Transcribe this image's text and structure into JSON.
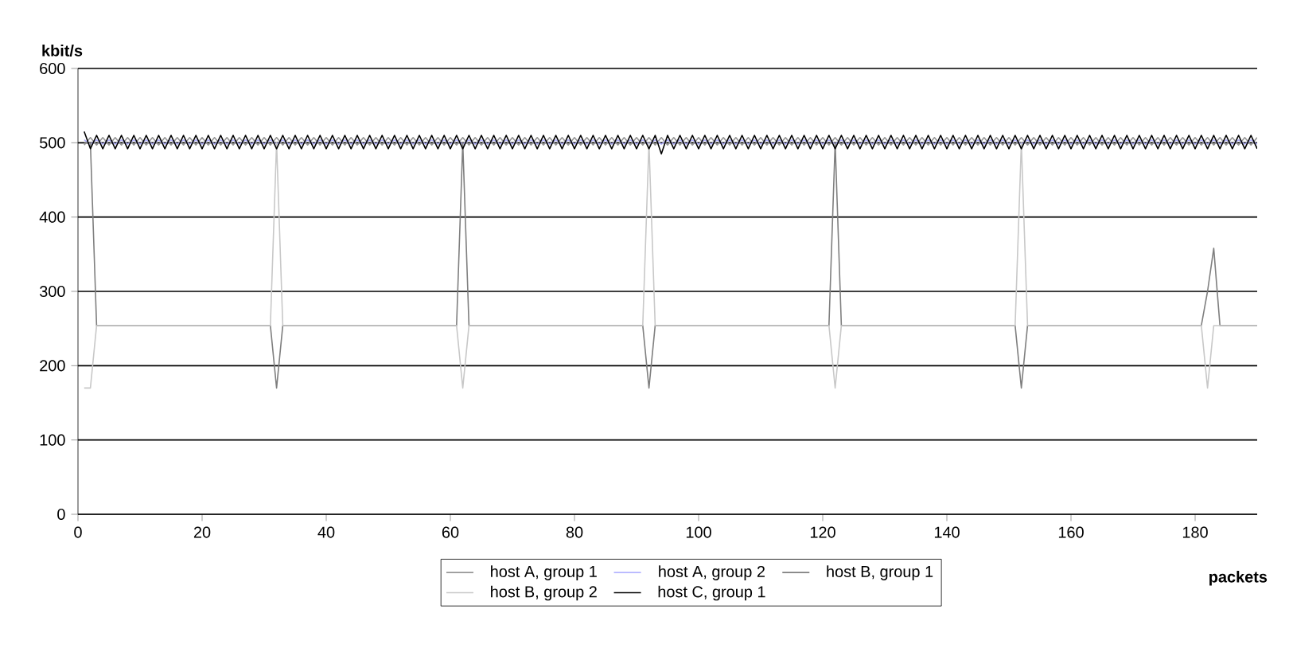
{
  "chart_data": {
    "type": "line",
    "xlabel": "packets",
    "ylabel": "kbit/s",
    "x": [
      1,
      2,
      3,
      4,
      5,
      6,
      7,
      8,
      9,
      10,
      11,
      12,
      13,
      14,
      15,
      16,
      17,
      18,
      19,
      20,
      21,
      22,
      23,
      24,
      25,
      26,
      27,
      28,
      29,
      30,
      31,
      32,
      33,
      34,
      35,
      36,
      37,
      38,
      39,
      40,
      41,
      42,
      43,
      44,
      45,
      46,
      47,
      48,
      49,
      50,
      51,
      52,
      53,
      54,
      55,
      56,
      57,
      58,
      59,
      60,
      61,
      62,
      63,
      64,
      65,
      66,
      67,
      68,
      69,
      70,
      71,
      72,
      73,
      74,
      75,
      76,
      77,
      78,
      79,
      80,
      81,
      82,
      83,
      84,
      85,
      86,
      87,
      88,
      89,
      90,
      91,
      92,
      93,
      94,
      95,
      96,
      97,
      98,
      99,
      100,
      101,
      102,
      103,
      104,
      105,
      106,
      107,
      108,
      109,
      110,
      111,
      112,
      113,
      114,
      115,
      116,
      117,
      118,
      119,
      120,
      121,
      122,
      123,
      124,
      125,
      126,
      127,
      128,
      129,
      130,
      131,
      132,
      133,
      134,
      135,
      136,
      137,
      138,
      139,
      140,
      141,
      142,
      143,
      144,
      145,
      146,
      147,
      148,
      149,
      150,
      151,
      152,
      153,
      154,
      155,
      156,
      157,
      158,
      159,
      160,
      161,
      162,
      163,
      164,
      165,
      166,
      167,
      168,
      169,
      170,
      171,
      172,
      173,
      174,
      175,
      176,
      177,
      178,
      179,
      180,
      181,
      182,
      183,
      184,
      185,
      186,
      187,
      188,
      189,
      190
    ],
    "series": [
      {
        "name": "host A, group 1",
        "color": "#969696",
        "values": [
          497,
          507,
          497,
          507,
          497,
          507,
          497,
          507,
          497,
          507,
          497,
          507,
          497,
          507,
          497,
          507,
          497,
          507,
          497,
          507,
          497,
          507,
          497,
          507,
          497,
          507,
          497,
          507,
          497,
          507,
          497,
          507,
          497,
          507,
          497,
          507,
          497,
          507,
          497,
          507,
          497,
          507,
          497,
          507,
          497,
          507,
          497,
          507,
          497,
          507,
          497,
          507,
          497,
          507,
          497,
          507,
          497,
          507,
          497,
          507,
          497,
          507,
          497,
          507,
          497,
          507,
          497,
          507,
          497,
          507,
          497,
          507,
          497,
          507,
          497,
          507,
          497,
          507,
          497,
          507,
          497,
          507,
          497,
          507,
          497,
          507,
          497,
          507,
          497,
          507,
          497,
          507,
          497,
          507,
          497,
          507,
          497,
          507,
          497,
          507,
          497,
          507,
          497,
          507,
          497,
          507,
          497,
          507,
          497,
          507,
          497,
          507,
          497,
          507,
          497,
          507,
          497,
          507,
          497,
          507,
          497,
          507,
          497,
          507,
          497,
          507,
          497,
          507,
          497,
          507,
          497,
          507,
          497,
          507,
          497,
          507,
          497,
          507,
          497,
          507,
          497,
          507,
          497,
          507,
          497,
          507,
          497,
          507,
          497,
          507,
          497,
          507,
          497,
          507,
          497,
          507,
          497,
          507,
          497,
          507,
          497,
          507,
          497,
          507,
          497,
          507,
          497,
          507,
          497,
          507,
          497,
          507,
          497,
          507,
          497,
          507,
          497,
          507,
          497,
          507,
          497,
          507,
          497,
          507,
          497,
          507,
          497,
          507,
          497,
          507
        ]
      },
      {
        "name": "host A, group 2",
        "color": "#b4b4ff",
        "values": [
          504,
          498,
          504,
          498,
          504,
          498,
          504,
          498,
          504,
          498,
          504,
          498,
          504,
          498,
          504,
          498,
          504,
          498,
          504,
          498,
          504,
          498,
          504,
          498,
          504,
          498,
          504,
          498,
          504,
          498,
          504,
          498,
          504,
          498,
          504,
          498,
          504,
          498,
          504,
          498,
          504,
          498,
          504,
          498,
          504,
          498,
          504,
          498,
          504,
          498,
          504,
          498,
          504,
          498,
          504,
          498,
          504,
          498,
          504,
          498,
          504,
          498,
          504,
          498,
          504,
          498,
          504,
          498,
          504,
          498,
          504,
          498,
          504,
          498,
          504,
          498,
          504,
          498,
          504,
          498,
          504,
          498,
          504,
          498,
          504,
          498,
          504,
          498,
          504,
          498,
          504,
          498,
          504,
          498,
          504,
          498,
          504,
          498,
          504,
          498,
          504,
          498,
          504,
          498,
          504,
          498,
          504,
          498,
          504,
          498,
          504,
          498,
          504,
          498,
          504,
          498,
          504,
          498,
          504,
          498,
          504,
          498,
          504,
          498,
          504,
          498,
          504,
          498,
          504,
          498,
          504,
          498,
          504,
          498,
          504,
          498,
          504,
          498,
          504,
          498,
          504,
          498,
          504,
          498,
          504,
          498,
          504,
          498,
          504,
          498,
          504,
          498,
          504,
          498,
          504,
          498,
          504,
          498,
          504,
          498,
          504,
          498,
          504,
          498,
          504,
          498,
          504,
          498,
          504,
          498,
          504,
          498,
          504,
          498,
          504,
          498,
          504,
          498,
          504,
          498,
          504,
          498,
          504,
          498,
          504,
          498,
          504,
          498,
          504,
          498
        ]
      },
      {
        "name": "host B, group 1",
        "color": "#7f7f7f",
        "x": [
          1,
          2,
          3,
          31,
          32,
          33,
          61,
          62,
          63,
          91,
          92,
          93,
          121,
          122,
          123,
          151,
          152,
          153,
          181,
          182,
          183,
          184,
          190
        ],
        "values": [
          500,
          500,
          254,
          254,
          170,
          254,
          254,
          500,
          254,
          254,
          170,
          254,
          254,
          500,
          254,
          254,
          170,
          254,
          254,
          300,
          358,
          254,
          254
        ]
      },
      {
        "name": "host B, group 2",
        "color": "#c8c8c8",
        "x": [
          1,
          2,
          3,
          31,
          32,
          33,
          61,
          62,
          63,
          91,
          92,
          93,
          121,
          122,
          123,
          151,
          152,
          153,
          181,
          182,
          183,
          190
        ],
        "values": [
          170,
          170,
          254,
          254,
          500,
          254,
          254,
          170,
          254,
          254,
          500,
          254,
          254,
          170,
          254,
          254,
          500,
          254,
          254,
          170,
          254,
          254
        ]
      },
      {
        "name": "host C, group 1",
        "color": "#000000",
        "values": [
          515,
          492,
          510,
          492,
          510,
          492,
          510,
          492,
          510,
          492,
          510,
          492,
          510,
          492,
          510,
          492,
          510,
          492,
          510,
          492,
          510,
          492,
          510,
          492,
          510,
          492,
          510,
          492,
          510,
          492,
          510,
          492,
          510,
          492,
          510,
          492,
          510,
          492,
          510,
          492,
          510,
          492,
          510,
          492,
          510,
          492,
          510,
          492,
          510,
          492,
          510,
          492,
          510,
          492,
          510,
          492,
          510,
          492,
          510,
          492,
          510,
          492,
          510,
          492,
          510,
          492,
          510,
          492,
          510,
          492,
          510,
          492,
          510,
          492,
          510,
          492,
          510,
          492,
          510,
          492,
          510,
          492,
          510,
          492,
          510,
          492,
          510,
          492,
          510,
          492,
          510,
          492,
          510,
          485,
          510,
          492,
          510,
          492,
          510,
          492,
          510,
          492,
          510,
          492,
          510,
          492,
          510,
          492,
          510,
          492,
          510,
          492,
          510,
          492,
          510,
          492,
          510,
          492,
          510,
          492,
          510,
          492,
          510,
          492,
          510,
          492,
          510,
          492,
          510,
          492,
          510,
          492,
          510,
          492,
          510,
          492,
          510,
          492,
          510,
          492,
          510,
          492,
          510,
          492,
          510,
          492,
          510,
          492,
          510,
          492,
          510,
          492,
          510,
          492,
          510,
          492,
          510,
          492,
          510,
          492,
          510,
          492,
          510,
          492,
          510,
          492,
          510,
          492,
          510,
          492,
          510,
          492,
          510,
          492,
          510,
          492,
          510,
          492,
          510,
          492,
          510,
          492,
          510,
          492,
          510,
          492,
          510,
          492,
          510,
          492
        ]
      }
    ],
    "xlim": [
      0,
      190
    ],
    "ylim": [
      0,
      600
    ],
    "xticks": [
      0,
      20,
      40,
      60,
      80,
      100,
      120,
      140,
      160,
      180
    ],
    "yticks": [
      0,
      100,
      200,
      300,
      400,
      500,
      600
    ],
    "grid": "y",
    "legend": "bottom"
  }
}
